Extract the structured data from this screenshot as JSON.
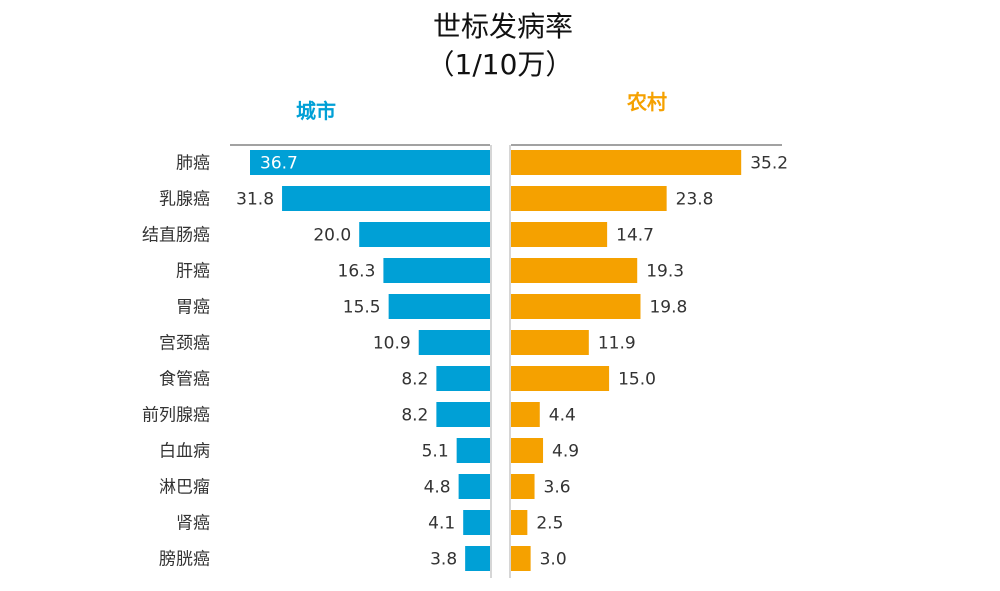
{
  "chart_data": {
    "type": "bar",
    "title": "世标发病率",
    "subtitle": "（1/10万）",
    "categories": [
      "肺癌",
      "乳腺癌",
      "结直肠癌",
      "肝癌",
      "胃癌",
      "宫颈癌",
      "食管癌",
      "前列腺癌",
      "白血病",
      "淋巴瘤",
      "肾癌",
      "膀胱癌"
    ],
    "series": [
      {
        "name": "城市",
        "color": "#00a0d6",
        "values": [
          36.7,
          31.8,
          20.0,
          16.3,
          15.5,
          10.9,
          8.2,
          8.2,
          5.1,
          4.8,
          4.1,
          3.8
        ],
        "labels": [
          "36.7",
          "31.8",
          "20.0",
          "16.3",
          "15.5",
          "10.9",
          "8.2",
          "8.2",
          "5.1",
          "4.8",
          "4.1",
          "3.8"
        ]
      },
      {
        "name": "农村",
        "color": "#f5a100",
        "values": [
          35.2,
          23.8,
          14.7,
          19.3,
          19.8,
          11.9,
          15.0,
          4.4,
          4.9,
          3.6,
          2.5,
          3.0
        ],
        "labels": [
          "35.2",
          "23.8",
          "14.7",
          "19.3",
          "19.8",
          "11.9",
          "15.0",
          "4.4",
          "4.9",
          "3.6",
          "2.5",
          "3.0"
        ]
      }
    ],
    "orientation": "horizontal-butterfly",
    "xlim": [
      0,
      40
    ],
    "grid": false
  }
}
